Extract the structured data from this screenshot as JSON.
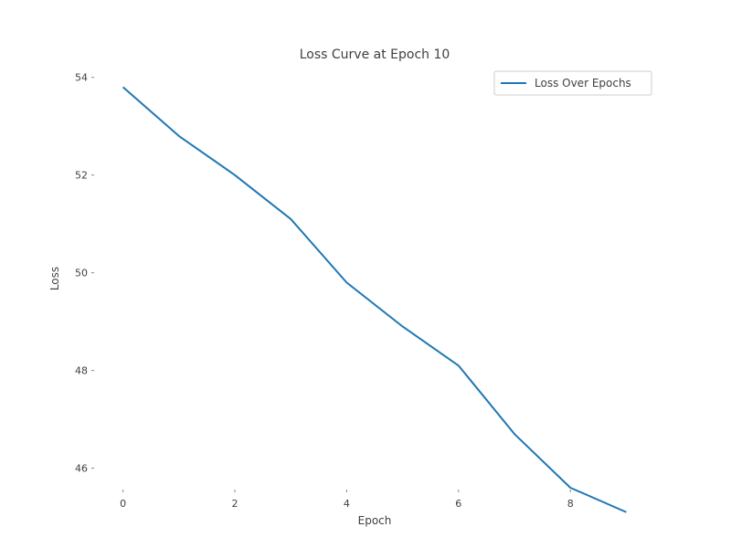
{
  "chart_data": {
    "type": "line",
    "title": "Loss Curve at Epoch 10",
    "xlabel": "Epoch",
    "ylabel": "Loss",
    "xlim": [
      -0.5,
      9.5
    ],
    "ylim": [
      45.6,
      54.2
    ],
    "xticks": [
      0,
      2,
      4,
      6,
      8
    ],
    "yticks": [
      46,
      48,
      50,
      52,
      54
    ],
    "x": [
      0,
      1,
      2,
      3,
      4,
      5,
      6,
      7,
      8,
      9
    ],
    "series": [
      {
        "name": "Loss Over Epochs",
        "color": "#1f77b4",
        "values": [
          53.8,
          52.8,
          52.0,
          51.1,
          49.8,
          48.9,
          48.1,
          46.7,
          45.6,
          45.1
        ]
      }
    ],
    "grid": false,
    "legend": "top-right"
  }
}
